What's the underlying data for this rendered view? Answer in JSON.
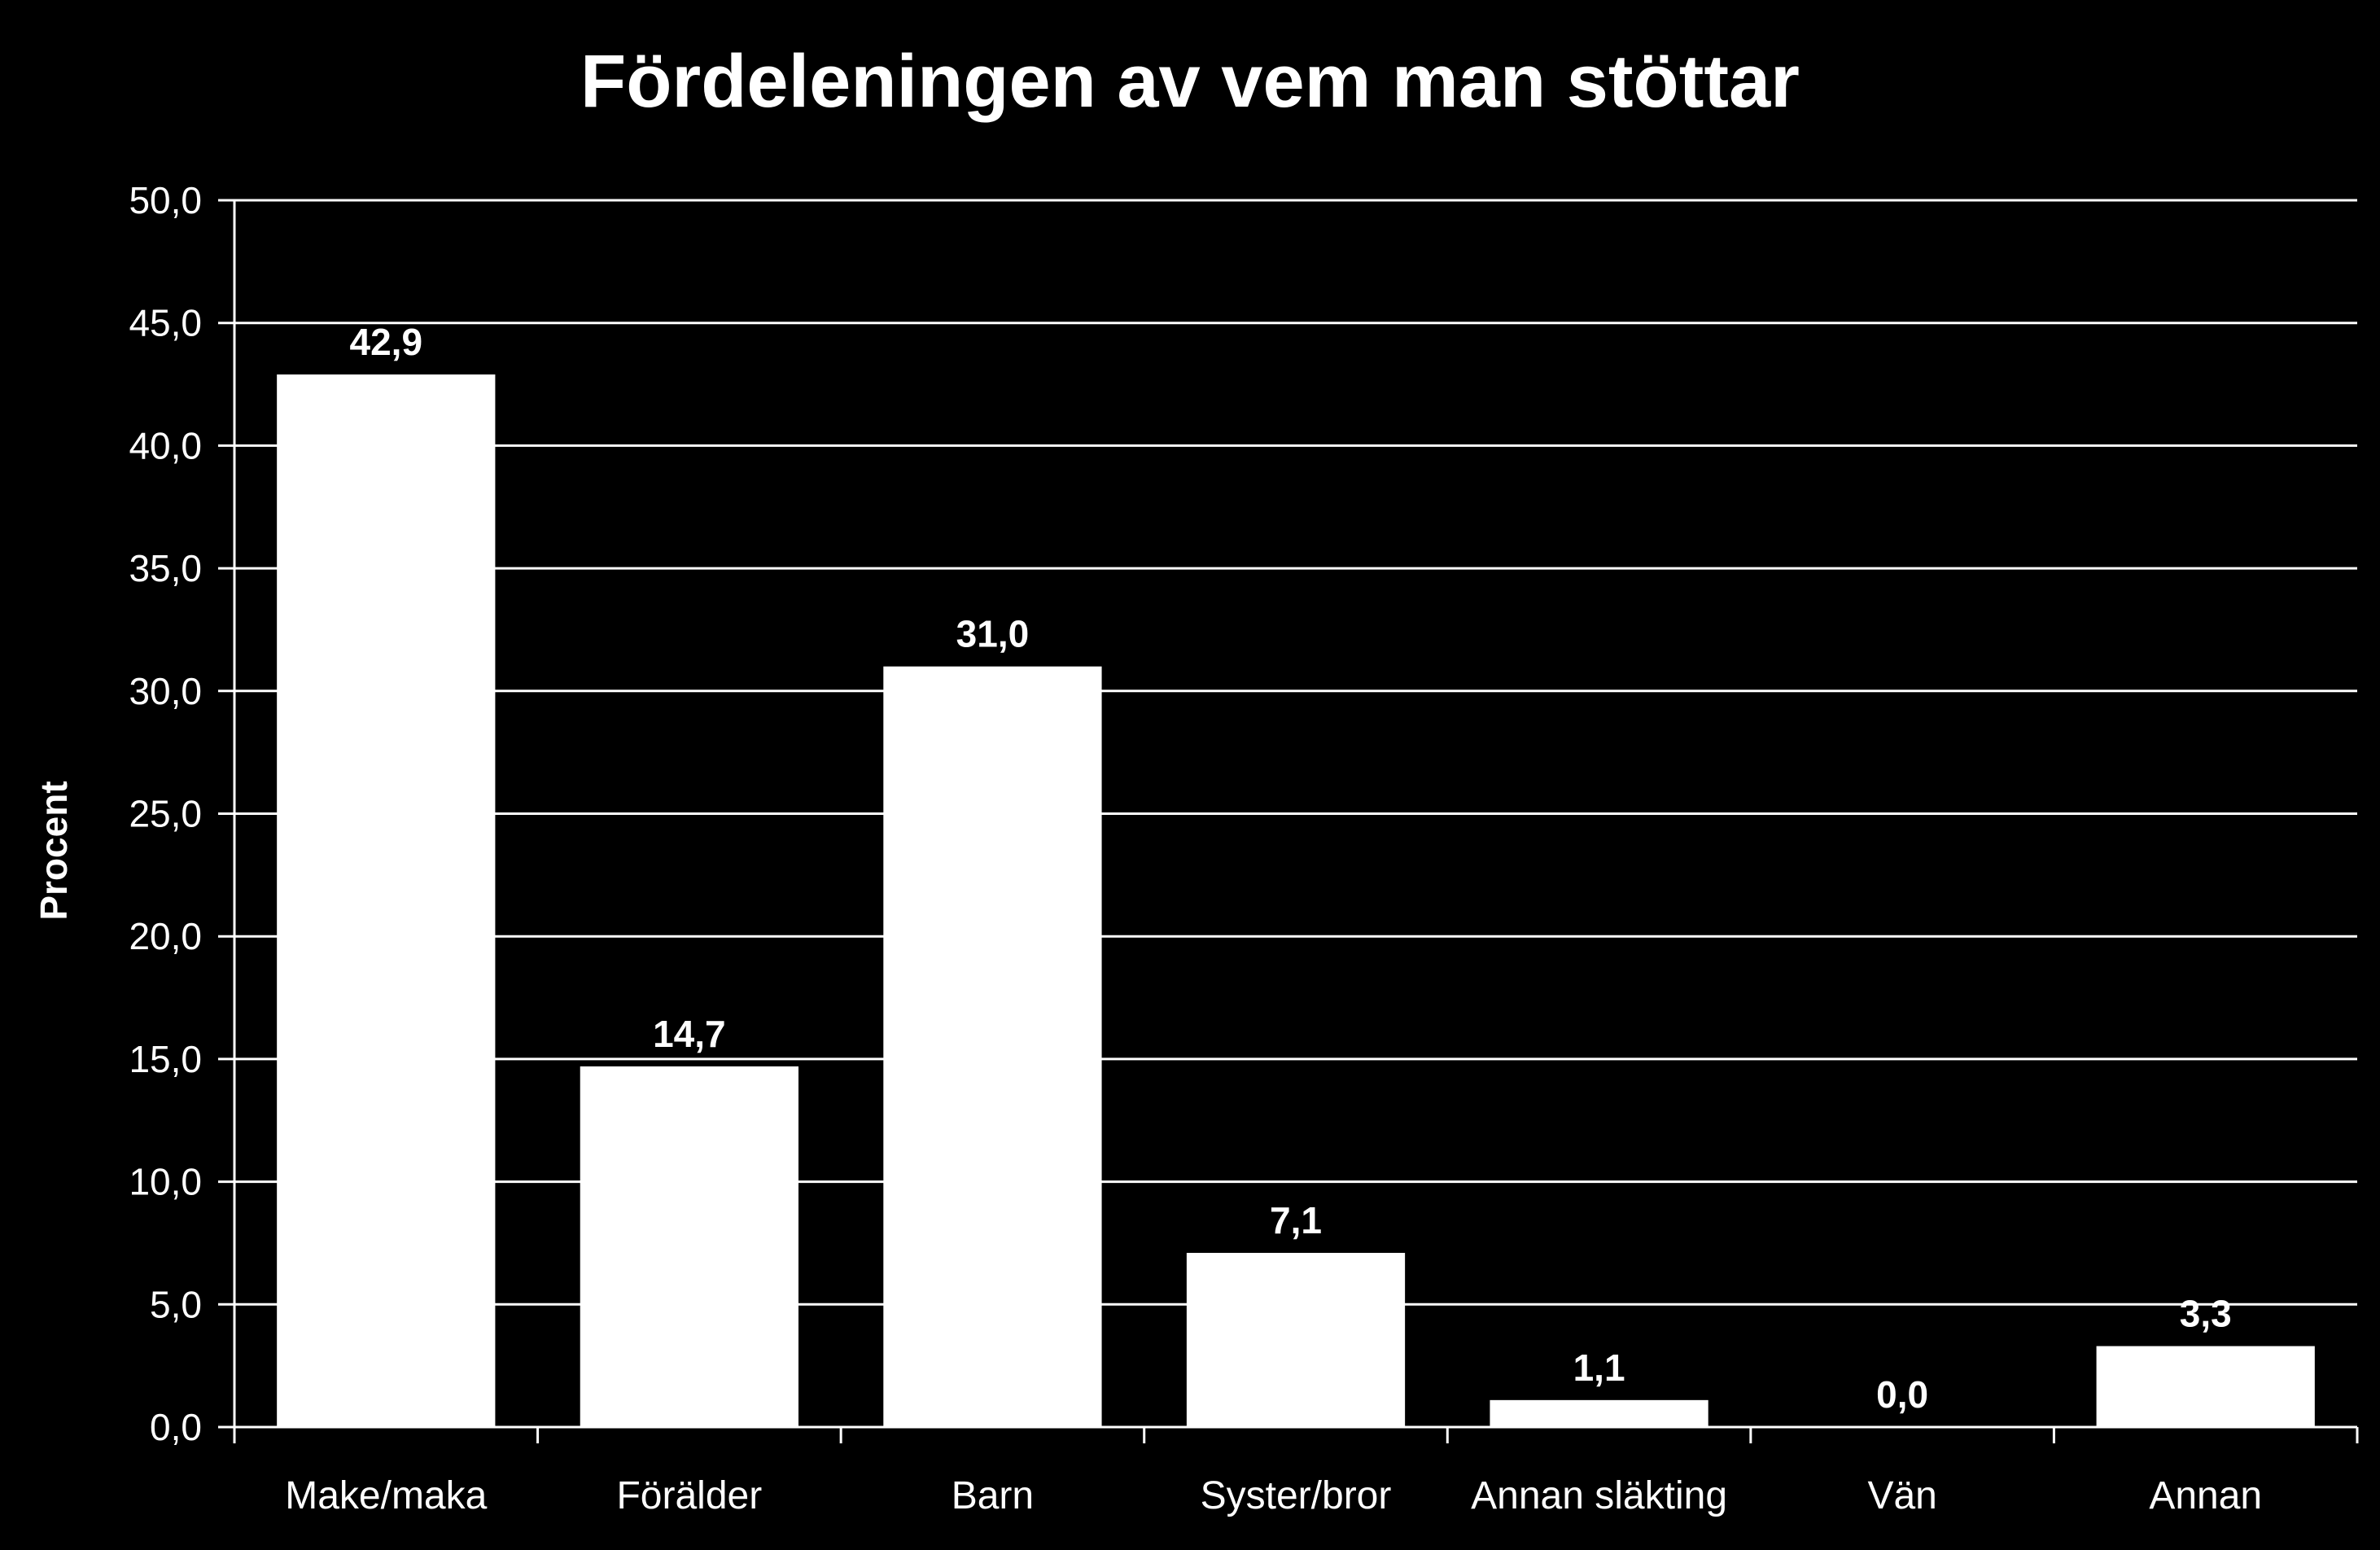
{
  "chart_data": {
    "type": "bar",
    "title": "Fördeleningen av vem man stöttar",
    "xlabel": "",
    "ylabel": "Procent",
    "categories": [
      "Make/maka",
      "Förälder",
      "Barn",
      "Syster/bror",
      "Annan släkting",
      "Vän",
      "Annan"
    ],
    "values": [
      42.9,
      14.7,
      31.0,
      7.1,
      1.1,
      0.0,
      3.3
    ],
    "value_labels": [
      "42,9",
      "14,7",
      "31,0",
      "7,1",
      "1,1",
      "0,0",
      "3,3"
    ],
    "ylim": [
      0,
      50
    ],
    "yticks": [
      0,
      5,
      10,
      15,
      20,
      25,
      30,
      35,
      40,
      45,
      50
    ],
    "ytick_labels": [
      "0,0",
      "5,0",
      "10,0",
      "15,0",
      "20,0",
      "25,0",
      "30,0",
      "35,0",
      "40,0",
      "45,0",
      "50,0"
    ],
    "grid": true,
    "legend": "none",
    "colors": {
      "background": "#000000",
      "bar": "#ffffff",
      "text": "#ffffff",
      "grid": "#ffffff"
    }
  }
}
